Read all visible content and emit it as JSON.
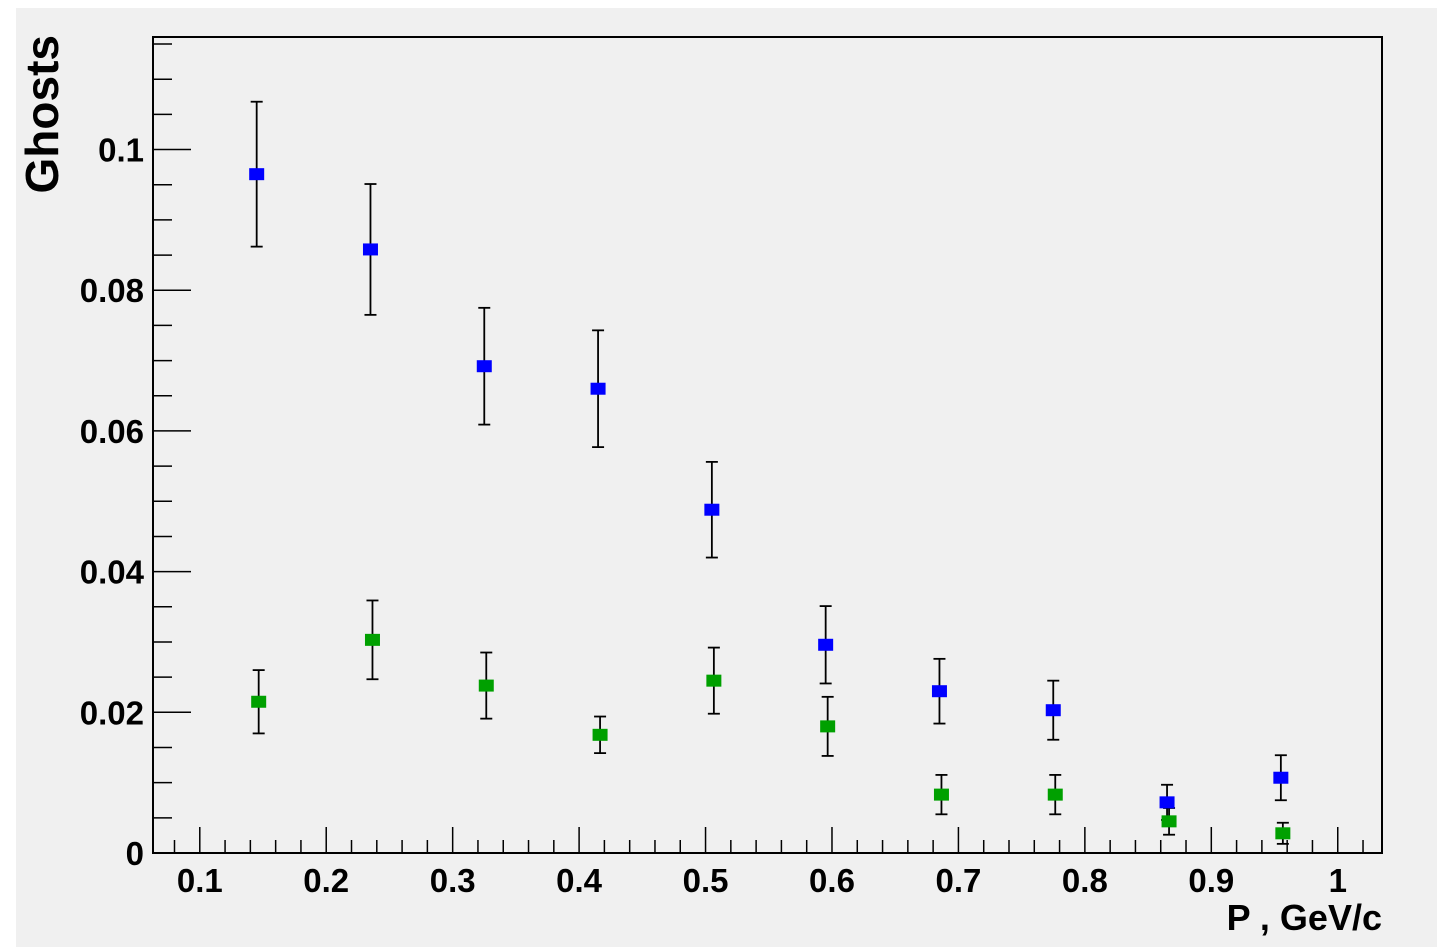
{
  "chart_data": {
    "type": "scatter",
    "title": "",
    "xlabel": "P , GeV/c",
    "ylabel": "Ghosts",
    "xlim": [
      0.063,
      1.035
    ],
    "ylim": [
      0,
      0.116
    ],
    "x_ticks": [
      "0.1",
      "0.2",
      "0.3",
      "0.4",
      "0.5",
      "0.6",
      "0.7",
      "0.8",
      "0.9",
      "1"
    ],
    "x_tick_values": [
      0.1,
      0.2,
      0.3,
      0.4,
      0.5,
      0.6,
      0.7,
      0.8,
      0.9,
      1.0
    ],
    "y_ticks": [
      "0",
      "0.02",
      "0.04",
      "0.06",
      "0.08",
      "0.1"
    ],
    "y_tick_values": [
      0,
      0.02,
      0.04,
      0.06,
      0.08,
      0.1
    ],
    "grid": false,
    "legend": "none",
    "series": [
      {
        "color": "#0000ff",
        "points": [
          {
            "x": 0.145,
            "y": 0.0965,
            "err": 0.0103
          },
          {
            "x": 0.235,
            "y": 0.0858,
            "err": 0.0093
          },
          {
            "x": 0.325,
            "y": 0.0692,
            "err": 0.0083
          },
          {
            "x": 0.415,
            "y": 0.066,
            "err": 0.0083
          },
          {
            "x": 0.505,
            "y": 0.0488,
            "err": 0.0068
          },
          {
            "x": 0.595,
            "y": 0.0296,
            "err": 0.0055
          },
          {
            "x": 0.685,
            "y": 0.023,
            "err": 0.0046
          },
          {
            "x": 0.775,
            "y": 0.0203,
            "err": 0.0042
          },
          {
            "x": 0.865,
            "y": 0.0072,
            "err": 0.0025
          },
          {
            "x": 0.955,
            "y": 0.0107,
            "err": 0.0032
          }
        ]
      },
      {
        "color": "#00a000",
        "points": [
          {
            "x": 0.145,
            "y": 0.0215,
            "err": 0.0045
          },
          {
            "x": 0.235,
            "y": 0.0303,
            "err": 0.0056
          },
          {
            "x": 0.325,
            "y": 0.0238,
            "err": 0.0047
          },
          {
            "x": 0.415,
            "y": 0.0168,
            "err": 0.0026
          },
          {
            "x": 0.505,
            "y": 0.0245,
            "err": 0.0047
          },
          {
            "x": 0.595,
            "y": 0.018,
            "err": 0.0042
          },
          {
            "x": 0.685,
            "y": 0.0083,
            "err": 0.0028
          },
          {
            "x": 0.775,
            "y": 0.0083,
            "err": 0.0028
          },
          {
            "x": 0.865,
            "y": 0.0045,
            "err": 0.0019
          },
          {
            "x": 0.955,
            "y": 0.0028,
            "err": 0.0015
          }
        ]
      }
    ]
  }
}
